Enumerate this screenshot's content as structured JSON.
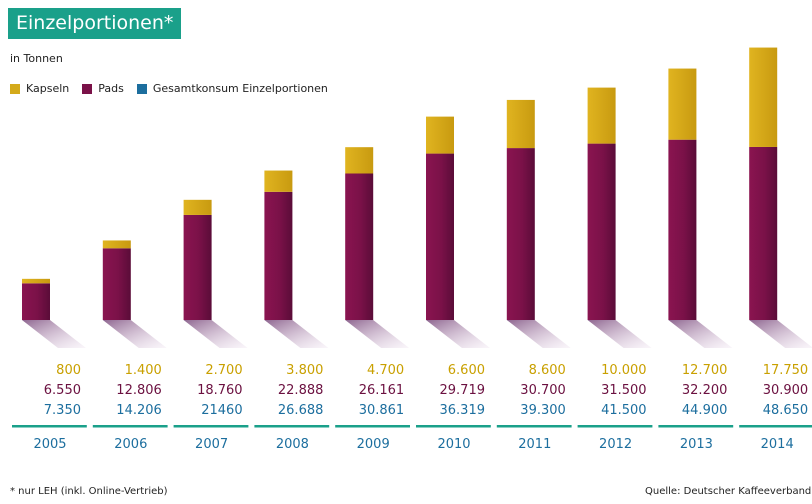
{
  "header": {
    "title": "Einzelportionen*",
    "subtitle": "in Tonnen"
  },
  "legend": {
    "items": [
      {
        "label": "Kapseln",
        "color": "#d4aa1a"
      },
      {
        "label": "Pads",
        "color": "#7a1148"
      },
      {
        "label": "Gesamtkonsum Einzelportionen",
        "color": "#1c6e9e"
      }
    ]
  },
  "footer": {
    "footnote": "* nur LEH (inkl. Online-Vertrieb)",
    "source": "Quelle: Deutscher Kaffeeverband"
  },
  "chart_data": {
    "type": "bar",
    "stacked": true,
    "categories": [
      "2005",
      "2006",
      "2007",
      "2008",
      "2009",
      "2010",
      "2011",
      "2012",
      "2013",
      "2014"
    ],
    "series": [
      {
        "name": "Pads",
        "color": "#7a1148",
        "values": [
          6550,
          12806,
          18760,
          22888,
          26161,
          29719,
          30700,
          31500,
          32200,
          30900
        ]
      },
      {
        "name": "Kapseln",
        "color": "#d4aa1a",
        "values": [
          800,
          1400,
          2700,
          3800,
          4700,
          6600,
          8600,
          10000,
          12700,
          17750
        ]
      }
    ],
    "table_rows": [
      {
        "color": "#c9a000",
        "labels": [
          "800",
          "1.400",
          "2.700",
          "3.800",
          "4.700",
          "6.600",
          "8.600",
          "10.000",
          "12.700",
          "17.750"
        ]
      },
      {
        "color": "#6b1040",
        "labels": [
          "6.550",
          "12.806",
          "18.760",
          "22.888",
          "26.161",
          "29.719",
          "30.700",
          "31.500",
          "32.200",
          "30.900"
        ]
      },
      {
        "color": "#1c6e9e",
        "labels": [
          "7.350",
          "14.206",
          "21460",
          "26.688",
          "30.861",
          "36.319",
          "39.300",
          "41.500",
          "44.900",
          "48.650"
        ]
      }
    ],
    "ylim": [
      0,
      50000
    ],
    "grid": false
  }
}
